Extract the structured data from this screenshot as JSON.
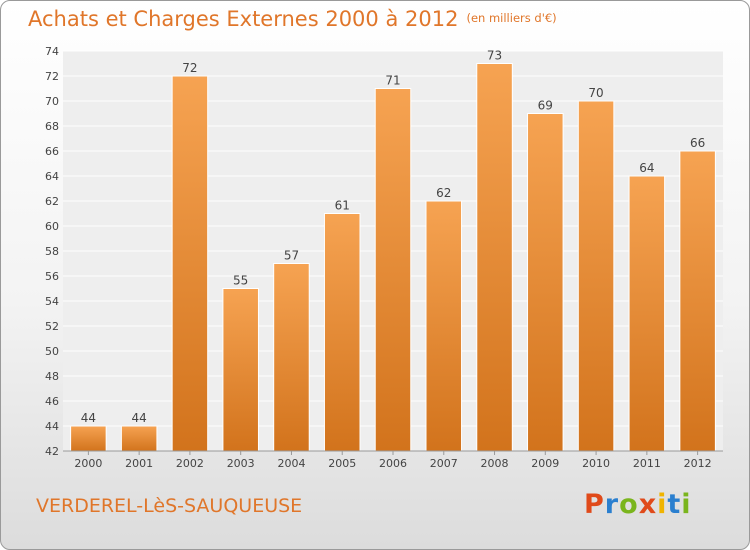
{
  "header": {
    "title": "Achats et Charges Externes 2000 à 2012",
    "subtitle": "(en milliers d'€)"
  },
  "footer": {
    "city": "VERDEREL-LèS-SAUQUEUSE",
    "logo": "Proxiti"
  },
  "colors": {
    "bar_top": "#f6a352",
    "bar_bottom": "#d2731c",
    "accent": "#e0762a",
    "logo_letters": [
      "#e04a1a",
      "#2a7fcf",
      "#7ab51d",
      "#e04a1a",
      "#f0b400",
      "#2a7fcf",
      "#7ab51d"
    ]
  },
  "chart_data": {
    "type": "bar",
    "categories": [
      "2000",
      "2001",
      "2002",
      "2003",
      "2004",
      "2005",
      "2006",
      "2007",
      "2008",
      "2009",
      "2010",
      "2011",
      "2012"
    ],
    "values": [
      44,
      44,
      72,
      55,
      57,
      61,
      71,
      62,
      73,
      69,
      70,
      64,
      66
    ],
    "title": "Achats et Charges Externes 2000 à 2012",
    "subtitle": "(en milliers d'€)",
    "ylim": [
      42,
      74
    ],
    "yticks": [
      42,
      44,
      46,
      48,
      50,
      52,
      54,
      56,
      58,
      60,
      62,
      64,
      66,
      68,
      70,
      72,
      74
    ],
    "grid": true
  }
}
